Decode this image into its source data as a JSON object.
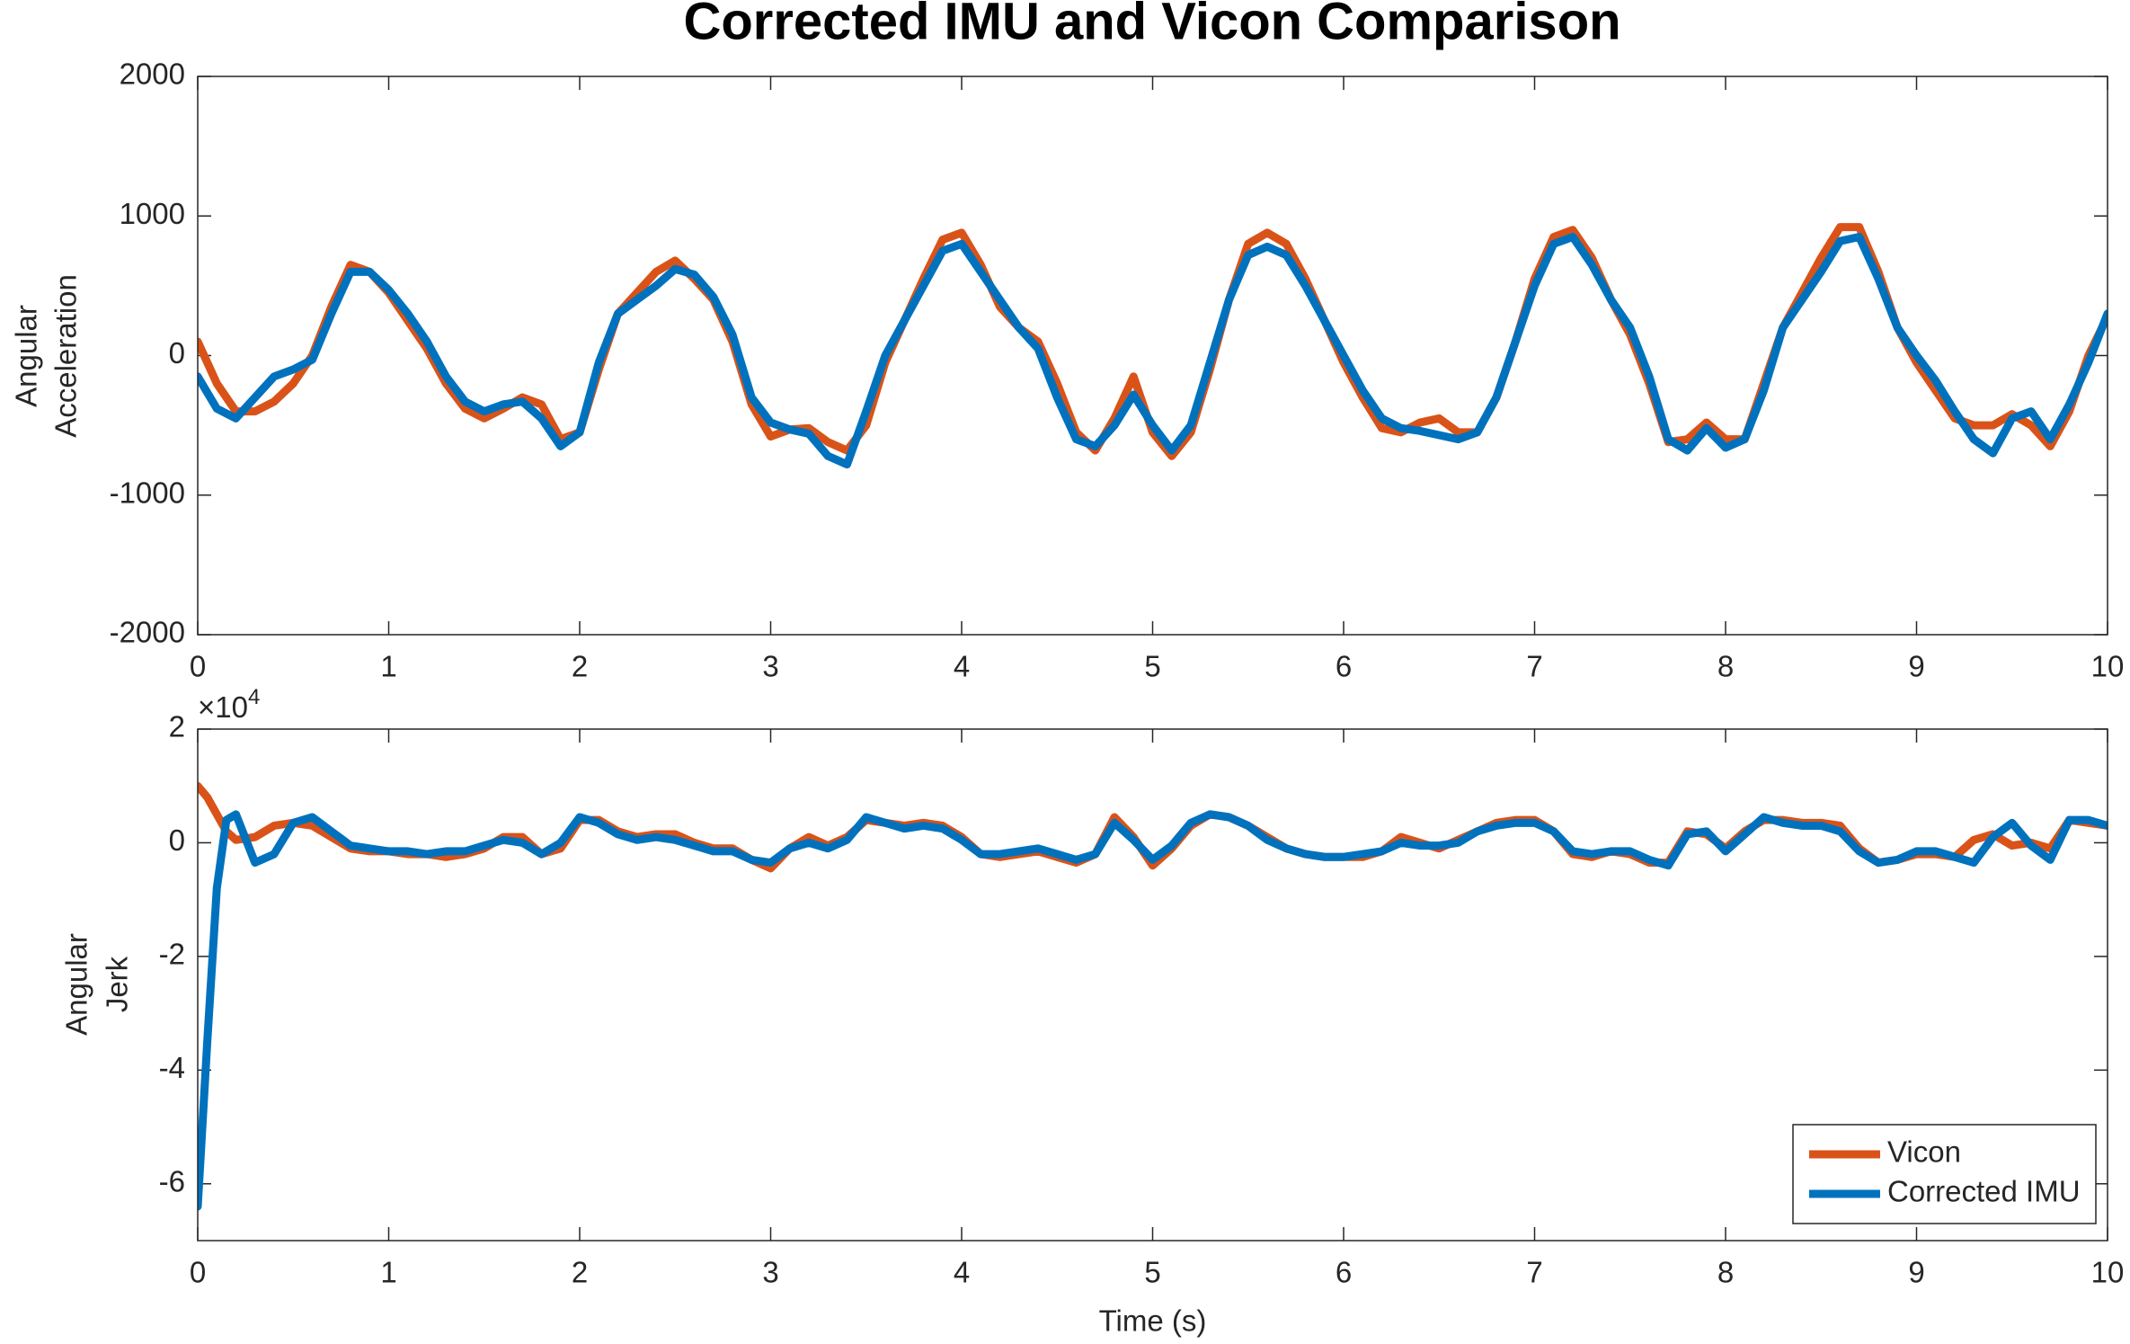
{
  "chart_data": [
    {
      "type": "line",
      "title": "Corrected IMU and Vicon Comparison",
      "ylabel": [
        "Angular",
        "Acceleration"
      ],
      "x": [
        0,
        0.1,
        0.2,
        0.3,
        0.4,
        0.5,
        0.6,
        0.7,
        0.8,
        0.9,
        1,
        1.1,
        1.2,
        1.3,
        1.4,
        1.5,
        1.6,
        1.7,
        1.8,
        1.9,
        2,
        2.1,
        2.2,
        2.3,
        2.4,
        2.5,
        2.6,
        2.7,
        2.8,
        2.9,
        3,
        3.1,
        3.2,
        3.3,
        3.4,
        3.5,
        3.6,
        3.7,
        3.8,
        3.9,
        4,
        4.1,
        4.2,
        4.3,
        4.4,
        4.5,
        4.6,
        4.7,
        4.8,
        4.9,
        5,
        5.1,
        5.2,
        5.3,
        5.4,
        5.5,
        5.6,
        5.7,
        5.8,
        5.9,
        6,
        6.1,
        6.2,
        6.3,
        6.4,
        6.5,
        6.6,
        6.7,
        6.8,
        6.9,
        7,
        7.1,
        7.2,
        7.3,
        7.4,
        7.5,
        7.6,
        7.7,
        7.8,
        7.9,
        8,
        8.1,
        8.2,
        8.3,
        8.4,
        8.5,
        8.6,
        8.7,
        8.8,
        8.9,
        9,
        9.1,
        9.2,
        9.3,
        9.4,
        9.5,
        9.6,
        9.7,
        9.8,
        9.9,
        10
      ],
      "series": [
        {
          "color": "#D95319",
          "values": [
            100,
            -200,
            -400,
            -400,
            -330,
            -200,
            0,
            350,
            650,
            600,
            450,
            250,
            50,
            -200,
            -380,
            -450,
            -380,
            -300,
            -350,
            -600,
            -550,
            -100,
            300,
            450,
            600,
            680,
            550,
            400,
            100,
            -350,
            -580,
            -530,
            -520,
            -620,
            -680,
            -500,
            -50,
            250,
            550,
            830,
            880,
            650,
            350,
            200,
            100,
            -200,
            -550,
            -680,
            -450,
            -150,
            -550,
            -720,
            -550,
            -100,
            400,
            800,
            880,
            800,
            550,
            250,
            -50,
            -300,
            -520,
            -550,
            -480,
            -450,
            -550,
            -550,
            -300,
            100,
            550,
            850,
            900,
            700,
            400,
            150,
            -200,
            -620,
            -600,
            -480,
            -600,
            -600,
            -200,
            200,
            450,
            700,
            920,
            920,
            600,
            200,
            -50,
            -250,
            -450,
            -500,
            -500,
            -420,
            -500,
            -650,
            -400,
            0,
            280
          ]
        },
        {
          "color": "#0072BD",
          "values": [
            -150,
            -380,
            -450,
            -300,
            -150,
            -100,
            -30,
            300,
            600,
            600,
            470,
            300,
            100,
            -150,
            -330,
            -400,
            -350,
            -330,
            -450,
            -650,
            -550,
            -50,
            300,
            400,
            500,
            620,
            580,
            420,
            150,
            -300,
            -480,
            -530,
            -560,
            -720,
            -780,
            -400,
            0,
            250,
            500,
            750,
            800,
            600,
            400,
            200,
            50,
            -300,
            -600,
            -650,
            -500,
            -280,
            -500,
            -680,
            -500,
            -50,
            400,
            720,
            780,
            720,
            500,
            250,
            0,
            -250,
            -450,
            -520,
            -540,
            -570,
            -600,
            -550,
            -300,
            100,
            500,
            800,
            850,
            650,
            400,
            200,
            -150,
            -600,
            -680,
            -520,
            -660,
            -600,
            -250,
            200,
            400,
            600,
            820,
            850,
            550,
            200,
            0,
            -180,
            -400,
            -600,
            -700,
            -450,
            -400,
            -600,
            -350,
            -50,
            300
          ]
        }
      ],
      "xlim": [
        0,
        10
      ],
      "xticks": [
        0,
        1,
        2,
        3,
        4,
        5,
        6,
        7,
        8,
        9,
        10
      ],
      "ylim": [
        -2000,
        2000
      ],
      "yticks": [
        -2000,
        -1000,
        0,
        1000,
        2000
      ],
      "grid": false
    },
    {
      "type": "line",
      "ylabel": [
        "Angular",
        "Jerk"
      ],
      "xlabel": "Time (s)",
      "y_multiplier": {
        "base": "×10",
        "exponent": "4"
      },
      "x": [
        0,
        0.05,
        0.1,
        0.15,
        0.2,
        0.3,
        0.4,
        0.5,
        0.6,
        0.7,
        0.8,
        0.9,
        1,
        1.1,
        1.2,
        1.3,
        1.4,
        1.5,
        1.6,
        1.7,
        1.8,
        1.9,
        2,
        2.1,
        2.2,
        2.3,
        2.4,
        2.5,
        2.6,
        2.7,
        2.8,
        2.9,
        3,
        3.1,
        3.2,
        3.3,
        3.4,
        3.5,
        3.6,
        3.7,
        3.8,
        3.9,
        4,
        4.1,
        4.2,
        4.3,
        4.4,
        4.5,
        4.6,
        4.7,
        4.8,
        4.9,
        5,
        5.1,
        5.2,
        5.3,
        5.4,
        5.5,
        5.6,
        5.7,
        5.8,
        5.9,
        6,
        6.1,
        6.2,
        6.3,
        6.4,
        6.5,
        6.6,
        6.7,
        6.8,
        6.9,
        7,
        7.1,
        7.2,
        7.3,
        7.4,
        7.5,
        7.6,
        7.7,
        7.8,
        7.9,
        8,
        8.1,
        8.2,
        8.3,
        8.4,
        8.5,
        8.6,
        8.7,
        8.8,
        8.9,
        9,
        9.1,
        9.2,
        9.3,
        9.4,
        9.5,
        9.6,
        9.7,
        9.8,
        9.9,
        10
      ],
      "series": [
        {
          "name": "Vicon",
          "color": "#D95319",
          "values": [
            1.0,
            0.8,
            0.5,
            0.2,
            0.05,
            0.1,
            0.3,
            0.35,
            0.3,
            0.1,
            -0.1,
            -0.15,
            -0.15,
            -0.2,
            -0.2,
            -0.25,
            -0.2,
            -0.1,
            0.1,
            0.1,
            -0.2,
            -0.1,
            0.4,
            0.4,
            0.2,
            0.1,
            0.15,
            0.15,
            0,
            -0.1,
            -0.1,
            -0.3,
            -0.45,
            -0.1,
            0.1,
            -0.05,
            0.1,
            0.4,
            0.35,
            0.3,
            0.35,
            0.3,
            0.1,
            -0.2,
            -0.25,
            -0.2,
            -0.15,
            -0.25,
            -0.35,
            -0.2,
            0.45,
            0.1,
            -0.4,
            -0.1,
            0.3,
            0.5,
            0.45,
            0.3,
            0.1,
            -0.1,
            -0.2,
            -0.25,
            -0.25,
            -0.25,
            -0.15,
            0.1,
            0,
            -0.1,
            0.05,
            0.2,
            0.35,
            0.4,
            0.4,
            0.2,
            -0.2,
            -0.25,
            -0.15,
            -0.2,
            -0.35,
            -0.35,
            0.2,
            0.15,
            -0.1,
            0.2,
            0.4,
            0.4,
            0.35,
            0.35,
            0.3,
            -0.1,
            -0.35,
            -0.3,
            -0.2,
            -0.2,
            -0.25,
            0.05,
            0.15,
            -0.05,
            0,
            -0.1,
            0.4,
            0.35,
            0.3
          ]
        },
        {
          "name": "Corrected IMU",
          "color": "#0072BD",
          "values": [
            -6.4,
            -3.5,
            -0.8,
            0.4,
            0.5,
            -0.35,
            -0.2,
            0.35,
            0.45,
            0.2,
            -0.05,
            -0.1,
            -0.15,
            -0.15,
            -0.2,
            -0.15,
            -0.15,
            -0.05,
            0.05,
            0,
            -0.2,
            0,
            0.45,
            0.35,
            0.15,
            0.05,
            0.1,
            0.05,
            -0.05,
            -0.15,
            -0.15,
            -0.3,
            -0.35,
            -0.1,
            0,
            -0.1,
            0.05,
            0.45,
            0.35,
            0.25,
            0.3,
            0.25,
            0.05,
            -0.2,
            -0.2,
            -0.15,
            -0.1,
            -0.2,
            -0.3,
            -0.2,
            0.35,
            0.05,
            -0.3,
            -0.05,
            0.35,
            0.5,
            0.45,
            0.3,
            0.05,
            -0.1,
            -0.2,
            -0.25,
            -0.25,
            -0.2,
            -0.15,
            0,
            -0.05,
            -0.05,
            0,
            0.2,
            0.3,
            0.35,
            0.35,
            0.2,
            -0.15,
            -0.2,
            -0.15,
            -0.15,
            -0.3,
            -0.4,
            0.15,
            0.2,
            -0.15,
            0.15,
            0.45,
            0.35,
            0.3,
            0.3,
            0.2,
            -0.15,
            -0.35,
            -0.3,
            -0.15,
            -0.15,
            -0.25,
            -0.35,
            0.1,
            0.35,
            -0.05,
            -0.3,
            0.4,
            0.4,
            0.3
          ]
        }
      ],
      "xlim": [
        0,
        10
      ],
      "xticks": [
        0,
        1,
        2,
        3,
        4,
        5,
        6,
        7,
        8,
        9,
        10
      ],
      "ylim": [
        -7,
        2
      ],
      "yticks": [
        -6,
        -4,
        -2,
        0,
        2
      ],
      "grid": false,
      "legend": "lower right"
    }
  ]
}
